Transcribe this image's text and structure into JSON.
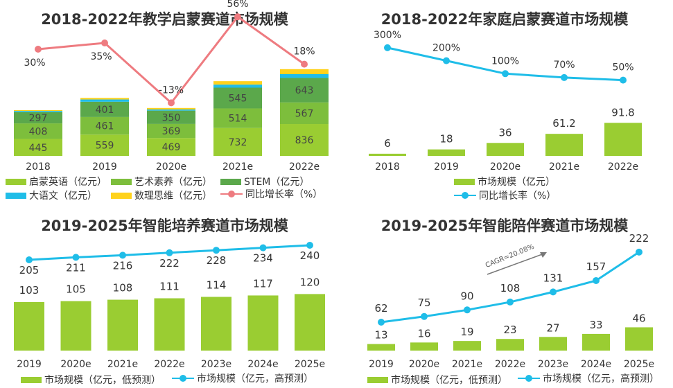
{
  "colors": {
    "lime": "#9ACD32",
    "green": "#7DBE3C",
    "darkgreen": "#5BA84B",
    "cyan": "#1FBDE8",
    "yellow": "#FFD21C",
    "pink": "#EE7B80",
    "line_blue": "#1FBDE8"
  },
  "chart_data": [
    {
      "type": "bar",
      "stacked": true,
      "title": "2018-2022年教学启蒙赛道市场规模",
      "categories": [
        "2018",
        "2019",
        "2020e",
        "2021e",
        "2022e"
      ],
      "series": [
        {
          "name": "启蒙英语（亿元）",
          "values": [
            445,
            559,
            469,
            732,
            836
          ]
        },
        {
          "name": "艺术素养（亿元）",
          "values": [
            408,
            461,
            369,
            514,
            567
          ]
        },
        {
          "name": "STEM（亿元）",
          "values": [
            297,
            401,
            350,
            545,
            643
          ]
        },
        {
          "name": "大语文（亿元）",
          "values": [
            30,
            60,
            30,
            80,
            100
          ]
        },
        {
          "name": "数理思维（亿元）",
          "values": [
            20,
            40,
            40,
            90,
            130
          ]
        }
      ],
      "line_series": {
        "name": "同比增长率（%）",
        "values": [
          30,
          35,
          -13,
          56,
          18
        ],
        "labels": [
          "30%",
          "35%",
          "-13%",
          "56%",
          "18%"
        ]
      },
      "ylim": [
        0,
        2500
      ],
      "legend": [
        "启蒙英语（亿元）",
        "艺术素养（亿元）",
        "STEM（亿元）",
        "大语文（亿元）",
        "数理思维（亿元）",
        "同比增长率（%）"
      ]
    },
    {
      "type": "bar",
      "title": "2018-2022年家庭启蒙赛道市场规模",
      "categories": [
        "2018",
        "2019",
        "2020e",
        "2021e",
        "2022e"
      ],
      "series": [
        {
          "name": "市场规模（亿元）",
          "values": [
            6,
            18,
            36,
            61.2,
            91.8
          ],
          "labels": [
            "6",
            "18",
            "36",
            "61.2",
            "91.8"
          ]
        }
      ],
      "line_series": {
        "name": "同比增长率（%）",
        "values": [
          300,
          200,
          100,
          70,
          50
        ],
        "labels": [
          "300%",
          "200%",
          "100%",
          "70%",
          "50%"
        ]
      },
      "ylim": [
        0,
        400
      ],
      "legend": [
        "市场规模（亿元）",
        "同比增长率（%）"
      ]
    },
    {
      "type": "bar",
      "title": "2019-2025年智能培养赛道市场规模",
      "categories": [
        "2019",
        "2020e",
        "2021e",
        "2022e",
        "2023e",
        "2024e",
        "2025e"
      ],
      "series": [
        {
          "name": "市场规模（亿元，低预测）",
          "values": [
            103,
            105,
            108,
            111,
            114,
            117,
            120
          ]
        }
      ],
      "line_series": {
        "name": "市场规模（亿元，高预测）",
        "values": [
          205,
          211,
          216,
          222,
          228,
          234,
          240
        ]
      },
      "ylim": [
        0,
        300
      ],
      "legend": [
        "市场规模（亿元，低预测）",
        "市场规模（亿元，高预测）"
      ]
    },
    {
      "type": "bar",
      "title": "2019-2025年智能陪伴赛道市场规模",
      "categories": [
        "2019",
        "2020e",
        "2021e",
        "2022e",
        "2023e",
        "2024e",
        "2025e"
      ],
      "series": [
        {
          "name": "市场规模（亿元，低预测）",
          "values": [
            13,
            16,
            19,
            23,
            27,
            33,
            46
          ]
        }
      ],
      "line_series": {
        "name": "市场规模（亿元，高预测）",
        "values": [
          62,
          75,
          90,
          108,
          131,
          157,
          222
        ]
      },
      "annotation": "CAGR=20.08%",
      "ylim": [
        0,
        260
      ],
      "legend": [
        "市场规模（亿元，低预测）",
        "市场规模（亿元，高预测）"
      ]
    }
  ]
}
